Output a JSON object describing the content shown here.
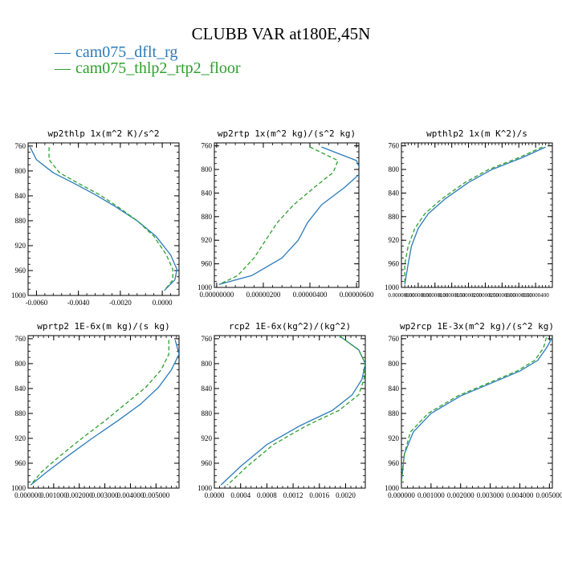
{
  "figure": {
    "title": "CLUBB VAR at180E,45N",
    "legend": [
      {
        "label": "cam075_dflt_rg",
        "color": "#2b7bba",
        "dash": "solid"
      },
      {
        "label": "cam075_thlp2_rtp2_floor",
        "color": "#2ca02c",
        "dash": "dashed"
      }
    ]
  },
  "chart_data": [
    {
      "type": "line",
      "title": "wp2thlp   1x(m^2 K)/s^2",
      "xlim": [
        -0.0064,
        0.0008
      ],
      "ylim": [
        1000,
        755
      ],
      "xticks": [
        -0.006,
        -0.004,
        -0.002,
        0.0
      ],
      "xtick_labels": [
        "-0.0060",
        "-0.0040",
        "-0.0020",
        "0.0000"
      ],
      "yticks": [
        760,
        800,
        840,
        880,
        920,
        960,
        1000
      ],
      "ytick_labels": [
        "760",
        "800",
        "840",
        "880",
        "920",
        "960",
        "1000"
      ],
      "series": [
        {
          "name": "cam075_dflt_rg",
          "x": [
            -0.0063,
            -0.006,
            -0.0052,
            -0.0042,
            -0.0032,
            -0.0022,
            -0.0012,
            -0.0003,
            0.0004,
            0.0007,
            0.0006,
            0.0001
          ],
          "y": [
            762,
            782,
            803,
            820,
            838,
            858,
            880,
            905,
            935,
            958,
            975,
            992
          ]
        },
        {
          "name": "cam075_thlp2_rtp2_floor",
          "x": [
            -0.0054,
            -0.0054,
            -0.0049,
            -0.004,
            -0.003,
            -0.0021,
            -0.0012,
            -0.0004,
            0.0002,
            0.0005,
            0.0005,
            0.0001
          ],
          "y": [
            762,
            782,
            803,
            820,
            838,
            858,
            880,
            905,
            935,
            958,
            975,
            992
          ]
        }
      ]
    },
    {
      "type": "line",
      "title": "wp2rtp   1x(m^2 kg)/(s^2 kg)",
      "xlim": [
        -1e-07,
        6.1e-06
      ],
      "ylim": [
        1000,
        755
      ],
      "xticks": [
        0.0,
        2e-06,
        4e-06,
        6e-06
      ],
      "xtick_labels": [
        "0.00000000",
        "0.00000200",
        "0.00000400",
        "0.00000600"
      ],
      "yticks": [
        760,
        800,
        840,
        880,
        920,
        960,
        1000
      ],
      "ytick_labels": [
        "760",
        "800",
        "840",
        "880",
        "920",
        "960",
        "1000"
      ],
      "series": [
        {
          "name": "cam075_dflt_rg",
          "x": [
            4.5e-06,
            6e-06,
            6.2e-06,
            5.5e-06,
            4.5e-06,
            3.9e-06,
            3.5e-06,
            2.8e-06,
            1.5e-06,
            1e-07
          ],
          "y": [
            762,
            785,
            805,
            830,
            860,
            890,
            920,
            950,
            980,
            995
          ]
        },
        {
          "name": "cam075_thlp2_rtp2_floor",
          "x": [
            4e-06,
            5.2e-06,
            5e-06,
            4.2e-06,
            3.3e-06,
            2.6e-06,
            2.1e-06,
            1.6e-06,
            9e-07,
            1e-07
          ],
          "y": [
            762,
            785,
            805,
            830,
            860,
            890,
            920,
            950,
            980,
            995
          ]
        }
      ]
    },
    {
      "type": "line",
      "title": "wpthlp2   1x(m K^2)/s",
      "xlim": [
        0,
        4.5e-06
      ],
      "ylim": [
        1000,
        755
      ],
      "xticks": [
        0,
        5e-07,
        1e-06,
        1.5e-06,
        2e-06,
        2.5e-06,
        3e-06,
        3.5e-06,
        4e-06
      ],
      "xtick_labels": [
        "0.00000000",
        "0.00000050",
        "0.00000100",
        "0.00000150",
        "0.00000200",
        "0.00000250",
        "0.00000300",
        "0.00000350",
        "0.00000400"
      ],
      "yticks": [
        760,
        800,
        840,
        880,
        920,
        960,
        1000
      ],
      "ytick_labels": [
        "760",
        "800",
        "840",
        "880",
        "920",
        "960",
        "1000"
      ],
      "series": [
        {
          "name": "cam075_dflt_rg",
          "x": [
            4.3e-06,
            3.6e-06,
            2.7e-06,
            2e-06,
            1.3e-06,
            8e-07,
            5e-07,
            3e-07,
            2e-07,
            1e-07
          ],
          "y": [
            762,
            780,
            800,
            822,
            850,
            875,
            900,
            930,
            960,
            995
          ]
        },
        {
          "name": "cam075_thlp2_rtp2_floor",
          "x": [
            4.2e-06,
            3.5e-06,
            2.6e-06,
            1.9e-06,
            1.2e-06,
            7e-07,
            4e-07,
            2e-07,
            1e-07,
            1e-07
          ],
          "y": [
            762,
            780,
            800,
            822,
            850,
            875,
            900,
            930,
            960,
            995
          ]
        }
      ]
    },
    {
      "type": "line",
      "title": "wprtp2   1E-6x(m kg)/(s kg)",
      "xlim": [
        0,
        0.0059
      ],
      "ylim": [
        1000,
        755
      ],
      "xticks": [
        0.0,
        0.001,
        0.002,
        0.003,
        0.004,
        0.005
      ],
      "xtick_labels": [
        "0.000000",
        "0.001000",
        "0.002000",
        "0.003000",
        "0.004000",
        "0.005000"
      ],
      "yticks": [
        760,
        800,
        840,
        880,
        920,
        960,
        1000
      ],
      "ytick_labels": [
        "760",
        "800",
        "840",
        "880",
        "920",
        "960",
        "1000"
      ],
      "series": [
        {
          "name": "cam075_dflt_rg",
          "x": [
            0.00575,
            0.0059,
            0.0056,
            0.0051,
            0.0044,
            0.0035,
            0.0025,
            0.0015,
            0.0007,
            0.0001
          ],
          "y": [
            762,
            785,
            810,
            838,
            865,
            892,
            920,
            950,
            975,
            995
          ]
        },
        {
          "name": "cam075_thlp2_rtp2_floor",
          "x": [
            0.0055,
            0.0055,
            0.0052,
            0.0046,
            0.0038,
            0.003,
            0.0021,
            0.0012,
            0.0005,
            0.0001
          ],
          "y": [
            762,
            785,
            810,
            838,
            865,
            892,
            920,
            950,
            975,
            995
          ]
        }
      ]
    },
    {
      "type": "line",
      "title": "rcp2   1E-6x(kg^2)/(kg^2)",
      "xlim": [
        0,
        0.0023
      ],
      "ylim": [
        1000,
        755
      ],
      "xticks": [
        0.0,
        0.0004,
        0.0008,
        0.0012,
        0.0016,
        0.002
      ],
      "xtick_labels": [
        "0.0000",
        "0.0004",
        "0.0008",
        "0.0012",
        "0.0016",
        "0.0020"
      ],
      "yticks": [
        760,
        800,
        840,
        880,
        920,
        960,
        1000
      ],
      "ytick_labels": [
        "760",
        "800",
        "840",
        "880",
        "920",
        "960",
        "1000"
      ],
      "series": [
        {
          "name": "cam075_dflt_rg",
          "x": [
            0.0019,
            0.0022,
            0.0023,
            0.00225,
            0.0021,
            0.0018,
            0.0013,
            0.0008,
            0.0004,
            0.0001
          ],
          "y": [
            755,
            778,
            800,
            825,
            850,
            875,
            900,
            930,
            965,
            995
          ]
        },
        {
          "name": "cam075_thlp2_rtp2_floor",
          "x": [
            0.0019,
            0.0022,
            0.0023,
            0.00228,
            0.0022,
            0.0019,
            0.0014,
            0.0009,
            0.0005,
            0.0002
          ],
          "y": [
            755,
            778,
            800,
            825,
            850,
            875,
            900,
            930,
            965,
            995
          ]
        }
      ]
    },
    {
      "type": "line",
      "title": "wp2rcp   1E-3x(m^2 kg)/(s^2 kg)",
      "xlim": [
        0,
        0.0051
      ],
      "ylim": [
        1000,
        755
      ],
      "xticks": [
        0.0,
        0.001,
        0.002,
        0.003,
        0.004,
        0.005
      ],
      "xtick_labels": [
        "0.000000",
        "0.001000",
        "0.002000",
        "0.003000",
        "0.004000",
        "0.005000"
      ],
      "yticks": [
        760,
        800,
        840,
        880,
        920,
        960,
        1000
      ],
      "ytick_labels": [
        "760",
        "800",
        "840",
        "880",
        "920",
        "960",
        "1000"
      ],
      "series": [
        {
          "name": "cam075_dflt_rg",
          "x": [
            0.0051,
            0.0049,
            0.0046,
            0.004,
            0.0031,
            0.002,
            0.001,
            0.0004,
            0.0001,
            0.0
          ],
          "y": [
            758,
            775,
            795,
            812,
            830,
            852,
            880,
            910,
            945,
            990
          ]
        },
        {
          "name": "cam075_thlp2_rtp2_floor",
          "x": [
            0.0049,
            0.0048,
            0.0045,
            0.0039,
            0.003,
            0.0019,
            0.0009,
            0.0003,
            0.0001,
            0.0
          ],
          "y": [
            758,
            775,
            795,
            812,
            830,
            852,
            880,
            910,
            945,
            990
          ]
        }
      ]
    }
  ]
}
